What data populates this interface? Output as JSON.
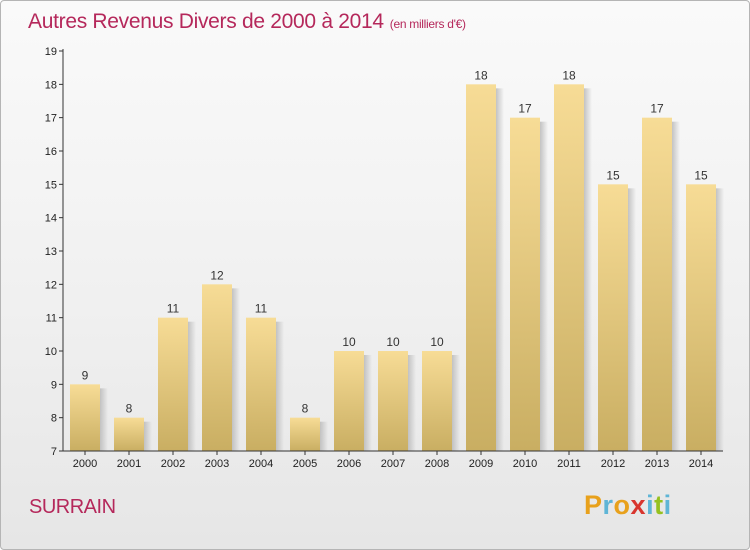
{
  "title": "Autres Revenus Divers de 2000 à 2014",
  "subtitle": "(en milliers d'€)",
  "place": "SURRAIN",
  "logo": {
    "text": "Proxiti",
    "letters": [
      "P",
      "r",
      "o",
      "x",
      "i",
      "t",
      "i"
    ],
    "colors": [
      "#e8a11c",
      "#5fb5d6",
      "#e8a11c",
      "#d8352e",
      "#5fb5d6",
      "#96c11f",
      "#5fb5d6"
    ]
  },
  "colors": {
    "title": "#b5285b",
    "bar_top": "#f7dc96",
    "bar_bottom": "#c9ae62",
    "axis": "#333333"
  },
  "chart_data": {
    "type": "bar",
    "title": "Autres Revenus Divers de 2000 à 2014",
    "subtitle": "(en milliers d'€)",
    "categories": [
      "2000",
      "2001",
      "2002",
      "2003",
      "2004",
      "2005",
      "2006",
      "2007",
      "2008",
      "2009",
      "2010",
      "2011",
      "2012",
      "2013",
      "2014"
    ],
    "values": [
      9,
      8,
      11,
      12,
      11,
      8,
      10,
      10,
      10,
      18,
      17,
      18,
      15,
      17,
      15
    ],
    "ylim": [
      7,
      19
    ],
    "yticks": [
      7,
      8,
      9,
      10,
      11,
      12,
      13,
      14,
      15,
      16,
      17,
      18,
      19
    ],
    "grid": false,
    "legend": "none"
  }
}
